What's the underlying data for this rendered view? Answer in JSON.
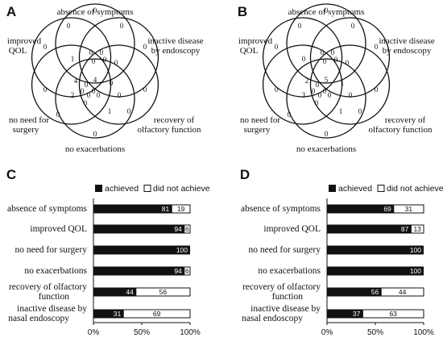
{
  "figure": {
    "panels": [
      "A",
      "B",
      "C",
      "D"
    ],
    "venn_labels": {
      "absence": "absence of symptoms",
      "qol1": "improved",
      "qol2": "QOL",
      "inactive1": "inactive disease",
      "inactive2": "by endoscopy",
      "surgery1": "no need for",
      "surgery2": "surgery",
      "olfactory1": "recovery of",
      "olfactory2": "olfactory function",
      "exacerbations": "no exacerbations"
    },
    "venn_A_numbers": [
      "0",
      "0",
      "0",
      "0",
      "0",
      "0",
      "0",
      "1",
      "0",
      "0",
      "0",
      "0",
      "0",
      "4",
      "4",
      "0",
      "0",
      "0",
      "2",
      "0",
      "0",
      "0",
      "0",
      "1",
      "0",
      "0",
      "0",
      "0"
    ],
    "venn_B_numbers": [
      "0",
      "0",
      "0",
      "0",
      "0",
      "0",
      "0",
      "0",
      "0",
      "0",
      "0",
      "0",
      "0",
      "2",
      "5",
      "0",
      "0",
      "0",
      "3",
      "0",
      "0",
      "0",
      "1",
      "1",
      "0",
      "0",
      "0",
      "0"
    ],
    "legend": {
      "achieved": "achieved",
      "not": "did not achieve"
    },
    "ticks": [
      "0%",
      "50%",
      "100%"
    ],
    "categories_lines": [
      [
        "absence of symptoms"
      ],
      [
        "improved QOL"
      ],
      [
        "no need for surgery"
      ],
      [
        "no exacerbations"
      ],
      [
        "recovery of olfactory",
        "function"
      ],
      [
        "inactive disease by",
        "nasal endoscopy"
      ]
    ]
  },
  "chart_data": [
    {
      "type": "bar",
      "panel": "C",
      "orientation": "horizontal-stacked-100",
      "categories": [
        "absence of symptoms",
        "improved QOL",
        "no need for surgery",
        "no exacerbations",
        "recovery of olfactory function",
        "inactive disease by nasal endoscopy"
      ],
      "series": [
        {
          "name": "achieved",
          "values": [
            81,
            94,
            100,
            94,
            44,
            31
          ]
        },
        {
          "name": "did not achieve",
          "values": [
            19,
            6,
            0,
            6,
            56,
            69
          ]
        }
      ],
      "xlim": [
        0,
        100
      ]
    },
    {
      "type": "bar",
      "panel": "D",
      "orientation": "horizontal-stacked-100",
      "categories": [
        "absence of symptoms",
        "improved QOL",
        "no need for surgery",
        "no exacerbations",
        "recovery of olfactory function",
        "inactive disease by nasal endoscopy"
      ],
      "series": [
        {
          "name": "achieved",
          "values": [
            69,
            87,
            100,
            100,
            56,
            37
          ]
        },
        {
          "name": "did not achieve",
          "values": [
            31,
            13,
            0,
            0,
            44,
            63
          ]
        }
      ],
      "xlim": [
        0,
        100
      ]
    }
  ]
}
